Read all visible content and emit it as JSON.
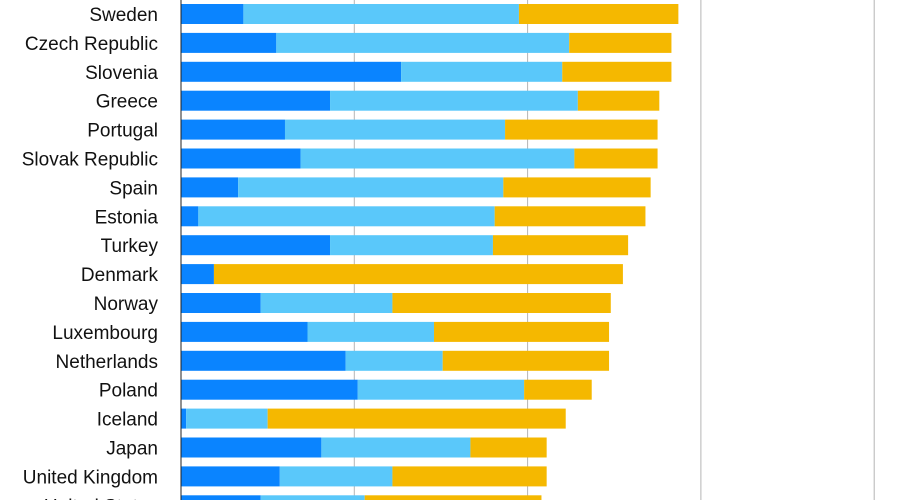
{
  "chart_data": {
    "type": "bar",
    "orientation": "horizontal",
    "stacked": true,
    "title": "",
    "xlabel": "",
    "ylabel": "",
    "xlim": [
      0,
      4.0
    ],
    "grid": true,
    "legend": "none",
    "categories": [
      "Sweden",
      "Czech Republic",
      "Slovenia",
      "Greece",
      "Portugal",
      "Slovak Republic",
      "Spain",
      "Estonia",
      "Turkey",
      "Denmark",
      "Norway",
      "Luxembourg",
      "Netherlands",
      "Poland",
      "Iceland",
      "Japan",
      "United Kingdom",
      "United States"
    ],
    "series": [
      {
        "color": "#0a84ff",
        "values": [
          0.36,
          0.55,
          1.27,
          0.86,
          0.6,
          0.69,
          0.33,
          0.1,
          0.86,
          0.19,
          0.46,
          0.73,
          0.95,
          1.02,
          0.03,
          0.81,
          0.57,
          0.46
        ]
      },
      {
        "color": "#5ac8fa",
        "values": [
          1.59,
          1.69,
          0.93,
          1.43,
          1.27,
          1.58,
          1.53,
          1.71,
          0.94,
          0.0,
          0.76,
          0.73,
          0.56,
          0.96,
          0.47,
          0.86,
          0.65,
          0.6
        ]
      },
      {
        "color": "#f5b800",
        "values": [
          0.92,
          0.59,
          0.63,
          0.47,
          0.88,
          0.48,
          0.85,
          0.87,
          0.78,
          2.36,
          1.26,
          1.01,
          0.96,
          0.39,
          1.72,
          0.44,
          0.89,
          1.02
        ]
      }
    ]
  }
}
